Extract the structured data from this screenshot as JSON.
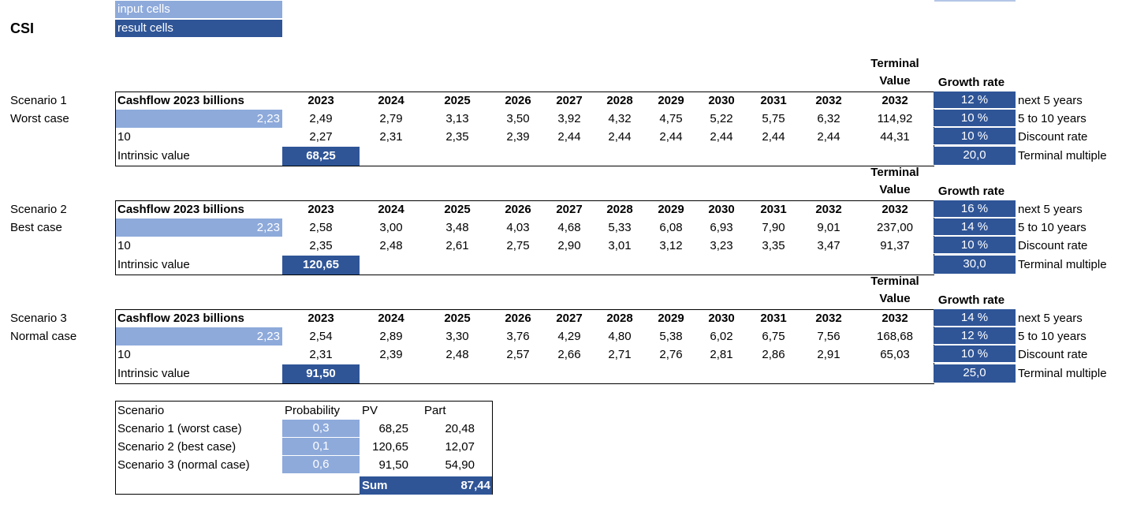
{
  "legend": {
    "input_label": "input cells",
    "result_label": "result cells"
  },
  "title": "CSI",
  "years": [
    "2023",
    "2024",
    "2025",
    "2026",
    "2027",
    "2028",
    "2029",
    "2030",
    "2031",
    "2032"
  ],
  "terminal_header": [
    "Terminal",
    "Value"
  ],
  "terminal_year": "2032",
  "growth_header": "Growth rate",
  "cashflow_label": "Cashflow 2023 billions",
  "intrinsic_label": "Intrinsic value",
  "right_labels": [
    "next 5 years",
    "5 to 10 years",
    "Discount rate",
    "Terminal multiple"
  ],
  "scenarios": [
    {
      "name": "Scenario 1",
      "case": "Worst case",
      "input": "2,23",
      "years_label": "10",
      "cashflows": [
        "2,49",
        "2,79",
        "3,13",
        "3,50",
        "3,92",
        "4,32",
        "4,75",
        "5,22",
        "5,75",
        "6,32"
      ],
      "terminal": "114,92",
      "pv": [
        "2,27",
        "2,31",
        "2,35",
        "2,39",
        "2,44",
        "2,44",
        "2,44",
        "2,44",
        "2,44",
        "2,44"
      ],
      "terminal_pv": "44,31",
      "intrinsic": "68,25",
      "rates": [
        "12 %",
        "10 %",
        "10 %",
        "20,0"
      ]
    },
    {
      "name": "Scenario 2",
      "case": "Best case",
      "input": "2,23",
      "years_label": "10",
      "cashflows": [
        "2,58",
        "3,00",
        "3,48",
        "4,03",
        "4,68",
        "5,33",
        "6,08",
        "6,93",
        "7,90",
        "9,01"
      ],
      "terminal": "237,00",
      "pv": [
        "2,35",
        "2,48",
        "2,61",
        "2,75",
        "2,90",
        "3,01",
        "3,12",
        "3,23",
        "3,35",
        "3,47"
      ],
      "terminal_pv": "91,37",
      "intrinsic": "120,65",
      "rates": [
        "16 %",
        "14 %",
        "10 %",
        "30,0"
      ]
    },
    {
      "name": "Scenario 3",
      "case": "Normal case",
      "input": "2,23",
      "years_label": "10",
      "cashflows": [
        "2,54",
        "2,89",
        "3,30",
        "3,76",
        "4,29",
        "4,80",
        "5,38",
        "6,02",
        "6,75",
        "7,56"
      ],
      "terminal": "168,68",
      "pv": [
        "2,31",
        "2,39",
        "2,48",
        "2,57",
        "2,66",
        "2,71",
        "2,76",
        "2,81",
        "2,86",
        "2,91"
      ],
      "terminal_pv": "65,03",
      "intrinsic": "91,50",
      "rates": [
        "14 %",
        "12 %",
        "10 %",
        "25,0"
      ]
    }
  ],
  "summary": {
    "headers": [
      "Scenario",
      "Probability",
      "PV",
      "Part"
    ],
    "rows": [
      [
        "Scenario 1 (worst case)",
        "0,3",
        "68,25",
        "20,48"
      ],
      [
        "Scenario 2 (best case)",
        "0,1",
        "120,65",
        "12,07"
      ],
      [
        "Scenario 3 (normal case)",
        "0,6",
        "91,50",
        "54,90"
      ]
    ],
    "sum_label": "Sum",
    "sum_value": "87,44"
  },
  "colors": {
    "input_cell": "#8eaadb",
    "result_cell": "#2f5597"
  }
}
